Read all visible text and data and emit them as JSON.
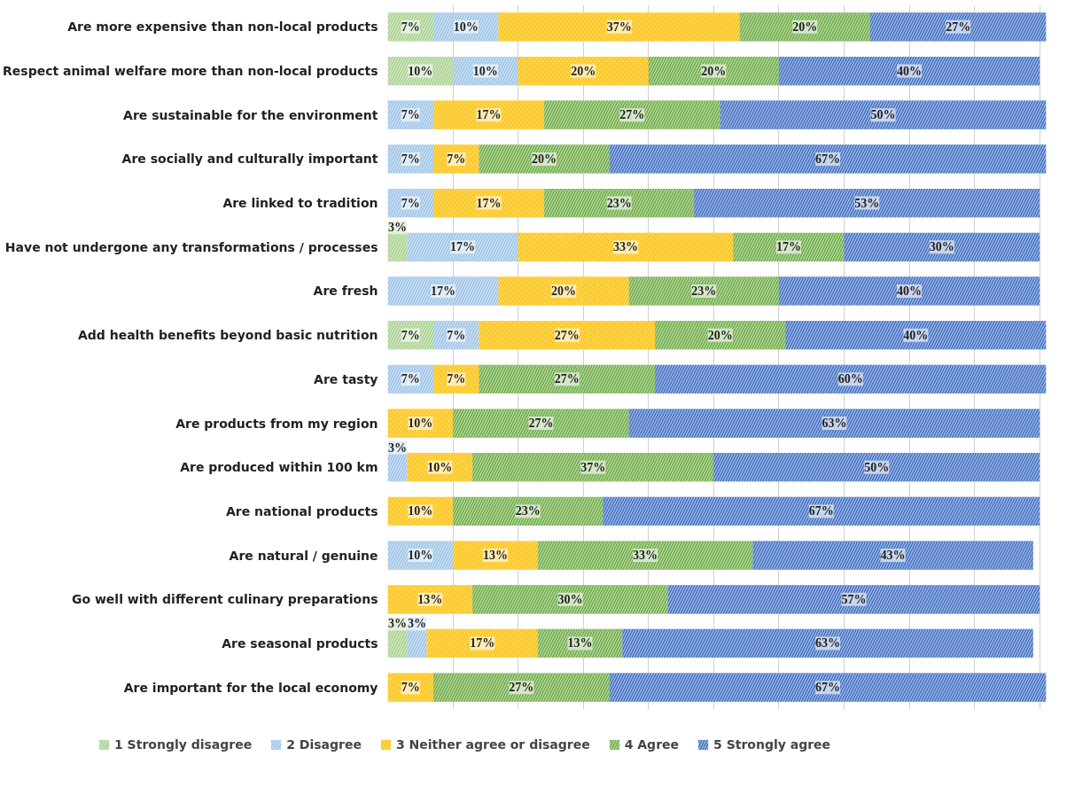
{
  "chart_data": {
    "type": "bar",
    "orientation": "horizontal",
    "stacked": true,
    "categories": [
      "Are more expensive than non-local products",
      "Respect animal welfare more than non-local products",
      "Are sustainable for the environment",
      "Are socially and culturally important",
      "Are linked to tradition",
      "Have not undergone any transformations / processes",
      "Are fresh",
      "Add health benefits beyond basic nutrition",
      "Are tasty",
      "Are products from my region",
      "Are produced within 100 km",
      "Are national products",
      "Are natural / genuine",
      "Go well with different culinary preparations",
      "Are seasonal products",
      "Are important for the local economy"
    ],
    "series": [
      {
        "name": "1 Strongly disagree",
        "color": "#a9d18e",
        "values": [
          7,
          10,
          null,
          null,
          null,
          3,
          null,
          7,
          null,
          null,
          null,
          null,
          null,
          null,
          3,
          null
        ],
        "value_labels": [
          "7%",
          "10%",
          null,
          null,
          null,
          "3%",
          null,
          "7%",
          null,
          null,
          null,
          null,
          null,
          null,
          "3%",
          null
        ]
      },
      {
        "name": "2 Disagree",
        "color": "#9dc3e6",
        "values": [
          10,
          10,
          7,
          7,
          7,
          17,
          17,
          7,
          7,
          null,
          3,
          null,
          10,
          null,
          3,
          null
        ],
        "value_labels": [
          "10%",
          "10%",
          "7%",
          "7%",
          "7%",
          "17%",
          "17%",
          "7%",
          "7%",
          null,
          "3%",
          null,
          "10%",
          null,
          "3%",
          null
        ]
      },
      {
        "name": "3 Neither agree or disagree",
        "color": "#ffc000",
        "values": [
          37,
          20,
          17,
          7,
          17,
          33,
          20,
          27,
          7,
          10,
          10,
          10,
          13,
          13,
          17,
          7
        ],
        "value_labels": [
          "37%",
          "20%",
          "17%",
          "7%",
          "17%",
          "33%",
          "20%",
          "27%",
          "7%",
          "10%",
          "10%",
          "10%",
          "13%",
          "13%",
          "17%",
          "7%"
        ]
      },
      {
        "name": "4 Agree",
        "color": "#70ad47",
        "values": [
          20,
          20,
          27,
          20,
          23,
          17,
          23,
          20,
          27,
          27,
          37,
          23,
          33,
          30,
          13,
          27
        ],
        "value_labels": [
          "20%",
          "20%",
          "27%",
          "20%",
          "23%",
          "17%",
          "23%",
          "20%",
          "27%",
          "27%",
          "37%",
          "23%",
          "33%",
          "30%",
          "13%",
          "27%"
        ]
      },
      {
        "name": "5 Strongly agree",
        "color": "#4472c4",
        "values": [
          27,
          40,
          50,
          67,
          53,
          30,
          40,
          40,
          60,
          63,
          50,
          67,
          43,
          57,
          63,
          67
        ],
        "value_labels": [
          "27%",
          "40%",
          "50%",
          "67%",
          "53%",
          "30%",
          "40%",
          "40%",
          "60%",
          "63%",
          "50%",
          "67%",
          "43%",
          "57%",
          "63%",
          "67%"
        ]
      }
    ],
    "xlim": [
      0,
      101
    ],
    "tick_labels": "y",
    "grid": "x",
    "legend": "bottom"
  }
}
